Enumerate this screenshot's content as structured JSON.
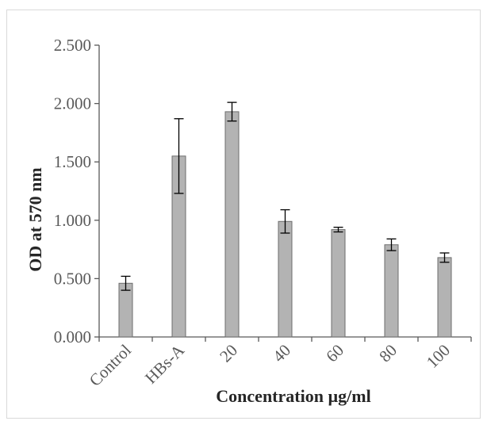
{
  "chart_data": {
    "type": "bar",
    "title": "",
    "xlabel": "Concentration  µg/ml",
    "ylabel": "OD at 570 nm",
    "categories": [
      "Control",
      "HBs-A",
      "20",
      "40",
      "60",
      "80",
      "100"
    ],
    "values": [
      0.46,
      1.55,
      1.93,
      0.99,
      0.92,
      0.79,
      0.68
    ],
    "errors": [
      0.06,
      0.32,
      0.08,
      0.1,
      0.02,
      0.05,
      0.04
    ],
    "ylim": [
      0,
      2.5
    ],
    "yticks": [
      "0.000",
      "0.500",
      "1.000",
      "1.500",
      "2.000",
      "2.500"
    ],
    "grid": false,
    "colors": {
      "bar_fill": "#b3b3b3",
      "bar_stroke": "#6d6d6d",
      "axis": "#595959",
      "error_bar": "#000000"
    }
  }
}
